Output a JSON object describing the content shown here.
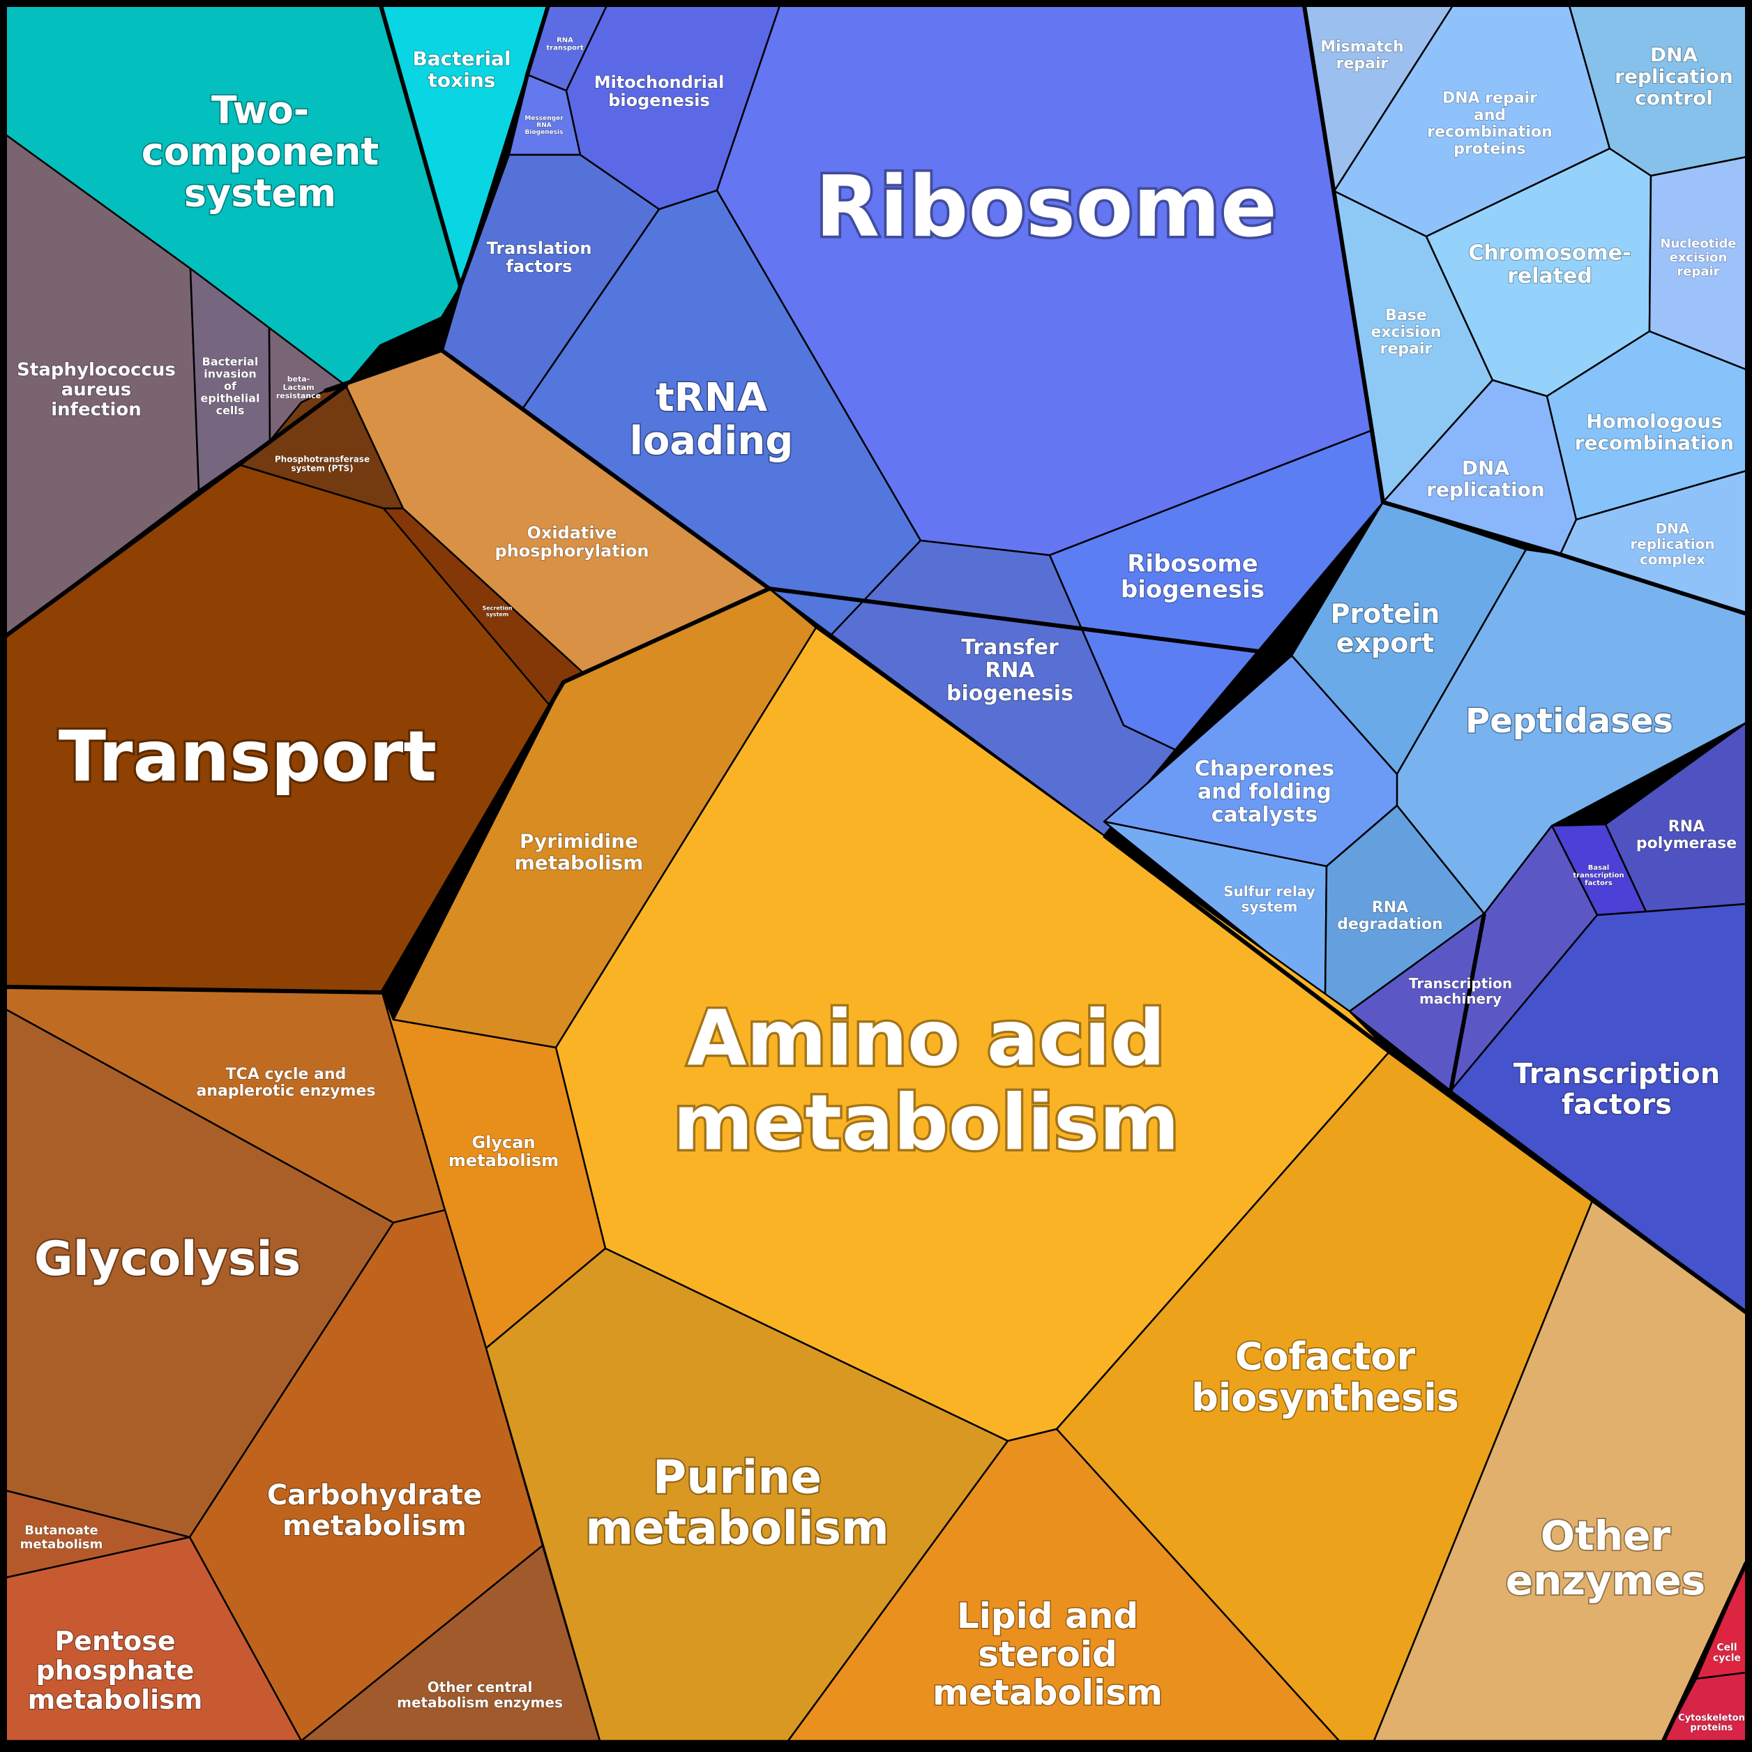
{
  "cells": [
    {
      "id": "two-component-system",
      "label": [
        "Two-",
        "component",
        "system"
      ],
      "color": "#03bfbd"
    },
    {
      "id": "bacterial-toxins",
      "label": [
        "Bacterial",
        "toxins"
      ],
      "color": "#0ad5e2"
    },
    {
      "id": "staphylococcus-aureus-infection",
      "label": [
        "Staphylococcus",
        "aureus",
        "infection"
      ],
      "color": "#7a6470"
    },
    {
      "id": "bacterial-invasion-of-epithelial-cells",
      "label": [
        "Bacterial",
        "invasion",
        "of",
        "epithelial",
        "cells"
      ],
      "color": "#76667f"
    },
    {
      "id": "beta-lactam-resistance",
      "label": [
        "beta-",
        "Lactam",
        "resistance"
      ],
      "color": "#7a6577"
    },
    {
      "id": "phosphotransferase-system-pts",
      "label": [
        "Phosphotransferase",
        "system (PTS)"
      ],
      "color": "#743a10"
    },
    {
      "id": "transport",
      "label": [
        "Transport"
      ],
      "color": "#8e4102"
    },
    {
      "id": "secretion-system",
      "label": [
        "Secretion",
        "system"
      ],
      "color": "#843707"
    },
    {
      "id": "oxidative-phosphorylation",
      "label": [
        "Oxidative",
        "phosphorylation"
      ],
      "color": "#d89145"
    },
    {
      "id": "rna-transport",
      "label": [
        "RNA",
        "transport"
      ],
      "color": "#5c6de4"
    },
    {
      "id": "messenger-rna-biogenesis",
      "label": [
        "Messenger",
        "RNA",
        "Biogenesis"
      ],
      "color": "#6479ec"
    },
    {
      "id": "mitochondrial-biogenesis",
      "label": [
        "Mitochondrial",
        "biogenesis"
      ],
      "color": "#5b69e6"
    },
    {
      "id": "translation-factors",
      "label": [
        "Translation",
        "factors"
      ],
      "color": "#5572d8"
    },
    {
      "id": "trna-loading",
      "label": [
        "tRNA",
        "loading"
      ],
      "color": "#5477de"
    },
    {
      "id": "ribosome",
      "label": [
        "Ribosome"
      ],
      "color": "#6476f2"
    },
    {
      "id": "ribosome-biogenesis",
      "label": [
        "Ribosome",
        "biogenesis"
      ],
      "color": "#5b7ef2"
    },
    {
      "id": "transfer-rna-biogenesis",
      "label": [
        "Transfer",
        "RNA",
        "biogenesis"
      ],
      "color": "#5870d4"
    },
    {
      "id": "mismatch-repair",
      "label": [
        "Mismatch",
        "repair"
      ],
      "color": "#9bc0ef"
    },
    {
      "id": "dna-repair-and-recombination-proteins",
      "label": [
        "DNA repair",
        "and",
        "recombination",
        "proteins"
      ],
      "color": "#8fc2fa"
    },
    {
      "id": "dna-replication-control",
      "label": [
        "DNA",
        "replication",
        "control"
      ],
      "color": "#85c1ea"
    },
    {
      "id": "base-excision-repair",
      "label": [
        "Base",
        "excision",
        "repair"
      ],
      "color": "#8ec9f6"
    },
    {
      "id": "chromosome-related",
      "label": [
        "Chromosome-",
        "related"
      ],
      "color": "#94d2fb"
    },
    {
      "id": "nucleotide-excision-repair",
      "label": [
        "Nucleotide",
        "excision",
        "repair"
      ],
      "color": "#9dc1f9"
    },
    {
      "id": "dna-replication",
      "label": [
        "DNA",
        "replication"
      ],
      "color": "#8ab7fb"
    },
    {
      "id": "homologous-recombination",
      "label": [
        "Homologous",
        "recombination"
      ],
      "color": "#85c3fa"
    },
    {
      "id": "dna-replication-complex",
      "label": [
        "DNA",
        "replication",
        "complex"
      ],
      "color": "#90c2fa"
    },
    {
      "id": "protein-export",
      "label": [
        "Protein",
        "export"
      ],
      "color": "#6aaae8"
    },
    {
      "id": "peptidases",
      "label": [
        "Peptidases"
      ],
      "color": "#78b3f0"
    },
    {
      "id": "chaperones-and-folding-catalysts",
      "label": [
        "Chaperones",
        "and folding",
        "catalysts"
      ],
      "color": "#6c9bf6"
    },
    {
      "id": "sulfur-relay-system",
      "label": [
        "Sulfur relay",
        "system"
      ],
      "color": "#74acf4"
    },
    {
      "id": "rna-degradation",
      "label": [
        "RNA",
        "degradation"
      ],
      "color": "#64a0de"
    },
    {
      "id": "rna-polymerase",
      "label": [
        "RNA",
        "polymerase"
      ],
      "color": "#4f52c1"
    },
    {
      "id": "basal-transcription-factors",
      "label": [
        "Basal",
        "transcription",
        "factors"
      ],
      "color": "#4c40d6"
    },
    {
      "id": "transcription-machinery",
      "label": [
        "Transcription",
        "machinery"
      ],
      "color": "#5b58c6"
    },
    {
      "id": "transcription-factors",
      "label": [
        "Transcription",
        "factors"
      ],
      "color": "#4553cc"
    },
    {
      "id": "pyrimidine-metabolism",
      "label": [
        "Pyrimidine",
        "metabolism"
      ],
      "color": "#d88c22"
    },
    {
      "id": "amino-acid-metabolism",
      "label": [
        "Amino acid",
        "metabolism"
      ],
      "color": "#fbb326"
    },
    {
      "id": "tca-cycle-and-anaplerotic-enzymes",
      "label": [
        "TCA cycle and",
        "anaplerotic enzymes"
      ],
      "color": "#bf6c22"
    },
    {
      "id": "glycan-metabolism",
      "label": [
        "Glycan",
        "metabolism"
      ],
      "color": "#e88e1a"
    },
    {
      "id": "glycolysis",
      "label": [
        "Glycolysis"
      ],
      "color": "#ab5f28"
    },
    {
      "id": "carbohydrate-metabolism",
      "label": [
        "Carbohydrate",
        "metabolism"
      ],
      "color": "#c0641d"
    },
    {
      "id": "purine-metabolism",
      "label": [
        "Purine",
        "metabolism"
      ],
      "color": "#d99822"
    },
    {
      "id": "cofactor-biosynthesis",
      "label": [
        "Cofactor",
        "biosynthesis"
      ],
      "color": "#eda21b"
    },
    {
      "id": "lipid-and-steroid-metabolism",
      "label": [
        "Lipid and",
        "steroid",
        "metabolism"
      ],
      "color": "#ea901f"
    },
    {
      "id": "other-enzymes",
      "label": [
        "Other",
        "enzymes"
      ],
      "color": "#e1b06c"
    },
    {
      "id": "butanoate-metabolism",
      "label": [
        "Butanoate",
        "metabolism"
      ],
      "color": "#b45a2a"
    },
    {
      "id": "pentose-phosphate-metabolism",
      "label": [
        "Pentose",
        "phosphate",
        "metabolism"
      ],
      "color": "#c85a32"
    },
    {
      "id": "other-central-metabolism-enzymes",
      "label": [
        "Other central",
        "metabolism enzymes"
      ],
      "color": "#a05a2b"
    },
    {
      "id": "cell-cycle",
      "label": [
        "Cell",
        "cycle"
      ],
      "color": "#dd2441"
    },
    {
      "id": "cytoskeleton-proteins",
      "label": [
        "Cytoskeleton",
        "proteins"
      ],
      "color": "#d72447"
    }
  ]
}
